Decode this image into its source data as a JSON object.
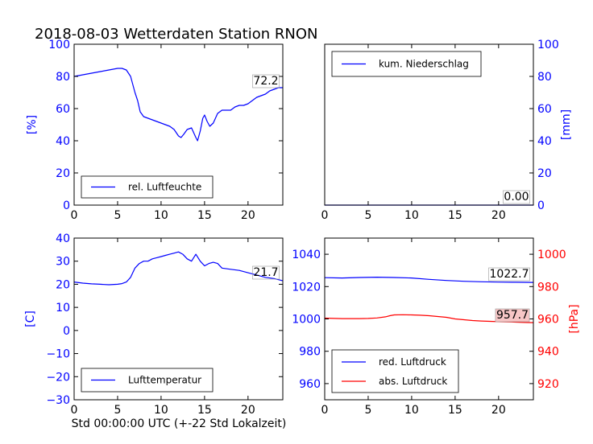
{
  "figure": {
    "title": "2018-08-03 Wetterdaten Station RNON",
    "xlabel": "Std 00:00:00 UTC (+-22 Std Lokalzeit)"
  },
  "colors": {
    "blue": "#0000ff",
    "red": "#ff0000",
    "axis": "#000000",
    "annot_red_bg": "#f7c6c6"
  },
  "chart_data": [
    {
      "type": "line",
      "panel": "top-left",
      "ylabel": "[%]",
      "ylabel_color": "#0000ff",
      "tick_color": "#0000ff",
      "xlim": [
        0,
        24
      ],
      "ylim": [
        0,
        100
      ],
      "xticks": [
        "0",
        "5",
        "10",
        "15",
        "20"
      ],
      "yticks": [
        "0",
        "20",
        "40",
        "60",
        "80",
        "100"
      ],
      "legend": "bottom-left",
      "grid": false,
      "annotation": "72.2",
      "series": [
        {
          "name": "rel. Luftfeuchte",
          "color": "#0000ff",
          "x": [
            0,
            1,
            2,
            3,
            4,
            5,
            5.5,
            6,
            6.5,
            7,
            7.3,
            7.6,
            8,
            8.5,
            9,
            9.5,
            10,
            10.5,
            11,
            11.5,
            12,
            12.3,
            12.6,
            13,
            13.5,
            14,
            14.2,
            14.5,
            14.8,
            15,
            15.3,
            15.6,
            16,
            16.5,
            17,
            17.5,
            18,
            18.5,
            19,
            19.5,
            20,
            20.5,
            21,
            21.5,
            22,
            22.5,
            23,
            23.5,
            24
          ],
          "values": [
            80,
            81,
            82,
            83,
            84,
            85,
            85,
            84,
            80,
            70,
            65,
            58,
            55,
            54,
            53,
            52,
            51,
            50,
            49,
            47,
            43,
            42,
            44,
            47,
            48,
            42,
            40,
            46,
            54,
            56,
            52,
            49,
            51,
            57,
            59,
            59,
            59,
            61,
            62,
            62,
            63,
            65,
            67,
            68,
            69,
            71,
            72,
            73,
            73
          ]
        }
      ]
    },
    {
      "type": "line",
      "panel": "top-right",
      "ylabel": "[mm]",
      "ylabel_color": "#0000ff",
      "tick_color": "#0000ff",
      "xlim": [
        0,
        24
      ],
      "ylim": [
        0,
        100
      ],
      "xticks": [
        "0",
        "5",
        "10",
        "15",
        "20"
      ],
      "yticks": [
        "0",
        "20",
        "40",
        "60",
        "80",
        "100"
      ],
      "legend": "top-left",
      "grid": false,
      "annotation": "0.00",
      "series": [
        {
          "name": "kum. Niederschlag",
          "color": "#0000ff",
          "x": [
            0,
            24
          ],
          "values": [
            0,
            0
          ]
        }
      ]
    },
    {
      "type": "line",
      "panel": "bottom-left",
      "ylabel": "[C]",
      "ylabel_color": "#0000ff",
      "tick_color": "#0000ff",
      "xlim": [
        0,
        24
      ],
      "ylim": [
        -30,
        40
      ],
      "xticks": [
        "0",
        "5",
        "10",
        "15",
        "20"
      ],
      "yticks": [
        "−30",
        "−20",
        "−10",
        "0",
        "10",
        "20",
        "30",
        "40"
      ],
      "legend": "bottom-left",
      "grid": false,
      "annotation": "21.7",
      "series": [
        {
          "name": "Lufttemperatur",
          "color": "#0000ff",
          "x": [
            0,
            1,
            2,
            3,
            4,
            5,
            5.5,
            6,
            6.5,
            7,
            7.5,
            8,
            8.5,
            9,
            9.5,
            10,
            10.5,
            11,
            11.5,
            12,
            12.5,
            13,
            13.5,
            14,
            14.5,
            15,
            15.5,
            16,
            16.5,
            17,
            18,
            19,
            20,
            21,
            22,
            23,
            24
          ],
          "values": [
            21,
            20.5,
            20.2,
            20,
            19.8,
            20,
            20.3,
            21,
            23,
            27,
            29,
            30,
            30,
            31,
            31.5,
            32,
            32.5,
            33,
            33.5,
            34,
            33,
            31,
            30,
            33,
            30,
            28,
            29,
            29.5,
            29,
            27,
            26.5,
            26,
            25,
            24,
            23,
            22.5,
            21.5
          ]
        }
      ]
    },
    {
      "type": "line",
      "panel": "bottom-right",
      "ylabel": "[hPa]",
      "ylabel_color": "#ff0000",
      "tick_color": "#0000ff",
      "tick_color_right": "#ff0000",
      "xlim": [
        0,
        24
      ],
      "ylim": [
        950,
        1050
      ],
      "ylim_right": [
        910,
        1010
      ],
      "xticks": [
        "0",
        "5",
        "10",
        "15",
        "20"
      ],
      "yticks": [
        "960",
        "980",
        "1000",
        "1020",
        "1040"
      ],
      "yticks_right": [
        "920",
        "940",
        "960",
        "980",
        "1000"
      ],
      "legend": "bottom-left",
      "grid": false,
      "annotations": [
        "1022.7",
        "957.7"
      ],
      "series": [
        {
          "name": "red. Luftdruck",
          "color": "#0000ff",
          "axis": "left",
          "x": [
            0,
            2,
            4,
            6,
            8,
            10,
            12,
            14,
            16,
            18,
            20,
            22,
            24
          ],
          "values": [
            1025.5,
            1025.3,
            1025.6,
            1025.8,
            1025.6,
            1025.3,
            1024.5,
            1023.8,
            1023.3,
            1023,
            1022.8,
            1022.7,
            1022.6
          ]
        },
        {
          "name": "abs. Luftdruck",
          "color": "#ff0000",
          "axis": "right",
          "x": [
            0,
            2,
            4,
            5,
            6,
            7,
            7.5,
            8,
            9,
            10,
            11,
            12,
            13,
            14,
            15,
            16,
            17,
            18,
            19,
            20,
            21,
            22,
            23,
            24
          ],
          "values": [
            960.5,
            960.2,
            960.2,
            960.3,
            960.6,
            961.3,
            962,
            962.5,
            962.6,
            962.5,
            962.3,
            962,
            961.5,
            961,
            960,
            959.5,
            959,
            958.7,
            958.5,
            958.3,
            958.2,
            958,
            957.8,
            957.7
          ]
        }
      ]
    }
  ]
}
